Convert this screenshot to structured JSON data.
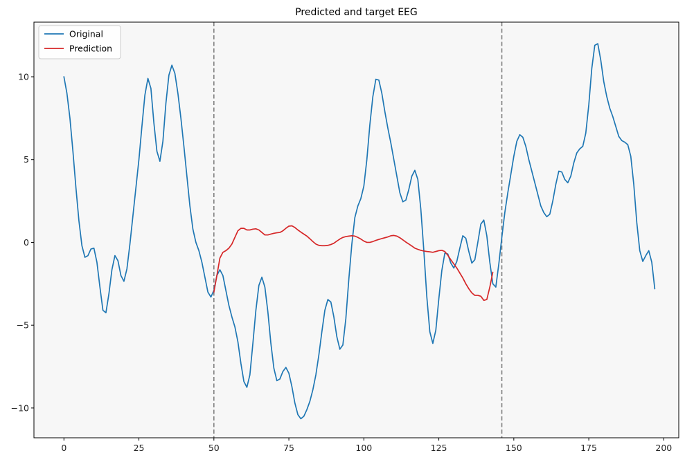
{
  "chart_data": {
    "type": "line",
    "title": "Predicted and target EEG",
    "xlabel": "",
    "ylabel": "",
    "xlim": [
      -10,
      205
    ],
    "ylim": [
      -11.8,
      13.3
    ],
    "xticks": [
      0,
      25,
      50,
      75,
      100,
      125,
      150,
      175,
      200
    ],
    "yticks": [
      -10,
      -5,
      0,
      5,
      10
    ],
    "grid": false,
    "legend_position": "top-left",
    "background_color": "#f7f7f7",
    "vlines": [
      50,
      146
    ],
    "series": [
      {
        "name": "Original",
        "color": "#1f77b4",
        "x_start": 0,
        "values": [
          10.0,
          9.0,
          7.5,
          5.5,
          3.3,
          1.3,
          -0.2,
          -0.9,
          -0.8,
          -0.4,
          -0.35,
          -1.2,
          -2.7,
          -4.1,
          -4.25,
          -3.1,
          -1.65,
          -0.8,
          -1.1,
          -2.0,
          -2.35,
          -1.6,
          -0.1,
          1.6,
          3.3,
          5.0,
          7.0,
          8.9,
          9.9,
          9.3,
          7.2,
          5.5,
          4.9,
          6.1,
          8.4,
          10.1,
          10.7,
          10.2,
          9.0,
          7.5,
          5.8,
          4.0,
          2.2,
          0.8,
          0.0,
          -0.5,
          -1.2,
          -2.1,
          -3.0,
          -3.3,
          -2.9,
          -2.0,
          -1.65,
          -2.0,
          -2.9,
          -3.8,
          -4.5,
          -5.1,
          -6.0,
          -7.3,
          -8.4,
          -8.75,
          -8.0,
          -6.1,
          -4.1,
          -2.6,
          -2.1,
          -2.7,
          -4.2,
          -6.1,
          -7.6,
          -8.35,
          -8.25,
          -7.8,
          -7.55,
          -7.9,
          -8.7,
          -9.7,
          -10.4,
          -10.65,
          -10.5,
          -10.1,
          -9.6,
          -8.9,
          -8.0,
          -6.8,
          -5.4,
          -4.1,
          -3.45,
          -3.6,
          -4.5,
          -5.7,
          -6.45,
          -6.2,
          -4.6,
          -2.2,
          -0.1,
          1.5,
          2.2,
          2.65,
          3.4,
          5.0,
          7.1,
          8.8,
          9.85,
          9.8,
          9.0,
          7.9,
          6.9,
          6.0,
          5.0,
          4.0,
          3.0,
          2.45,
          2.55,
          3.2,
          4.0,
          4.35,
          3.8,
          2.0,
          -0.5,
          -3.3,
          -5.4,
          -6.1,
          -5.3,
          -3.4,
          -1.7,
          -0.65,
          -0.7,
          -1.25,
          -1.55,
          -1.15,
          -0.35,
          0.4,
          0.25,
          -0.55,
          -1.25,
          -1.05,
          0.0,
          1.1,
          1.35,
          0.4,
          -1.2,
          -2.5,
          -2.7,
          -1.3,
          0.3,
          1.8,
          3.0,
          4.1,
          5.2,
          6.1,
          6.5,
          6.35,
          5.8,
          5.0,
          4.3,
          3.6,
          2.9,
          2.2,
          1.8,
          1.55,
          1.7,
          2.5,
          3.5,
          4.3,
          4.25,
          3.8,
          3.6,
          4.0,
          4.8,
          5.4,
          5.65,
          5.8,
          6.6,
          8.3,
          10.5,
          11.9,
          12.0,
          11.0,
          9.7,
          8.8,
          8.1,
          7.6,
          7.0,
          6.4,
          6.15,
          6.05,
          5.9,
          5.2,
          3.5,
          1.2,
          -0.5,
          -1.15,
          -0.8,
          -0.5,
          -1.2,
          -2.8
        ]
      },
      {
        "name": "Prediction",
        "color": "#d62728",
        "x_start": 50,
        "values": [
          -3.0,
          -2.0,
          -0.95,
          -0.6,
          -0.5,
          -0.35,
          -0.1,
          0.3,
          0.7,
          0.85,
          0.85,
          0.75,
          0.75,
          0.8,
          0.82,
          0.75,
          0.6,
          0.45,
          0.45,
          0.5,
          0.55,
          0.58,
          0.6,
          0.7,
          0.85,
          0.98,
          1.0,
          0.9,
          0.75,
          0.62,
          0.5,
          0.38,
          0.22,
          0.05,
          -0.1,
          -0.18,
          -0.2,
          -0.2,
          -0.18,
          -0.13,
          -0.05,
          0.08,
          0.2,
          0.3,
          0.35,
          0.38,
          0.4,
          0.38,
          0.3,
          0.2,
          0.08,
          0.0,
          0.0,
          0.05,
          0.12,
          0.18,
          0.23,
          0.28,
          0.33,
          0.4,
          0.42,
          0.38,
          0.28,
          0.15,
          0.02,
          -0.1,
          -0.22,
          -0.35,
          -0.42,
          -0.48,
          -0.52,
          -0.55,
          -0.57,
          -0.6,
          -0.55,
          -0.5,
          -0.48,
          -0.55,
          -0.78,
          -1.05,
          -1.3,
          -1.55,
          -1.85,
          -2.15,
          -2.5,
          -2.8,
          -3.05,
          -3.2,
          -3.2,
          -3.25,
          -3.5,
          -3.45,
          -2.7,
          -1.8
        ]
      }
    ]
  }
}
